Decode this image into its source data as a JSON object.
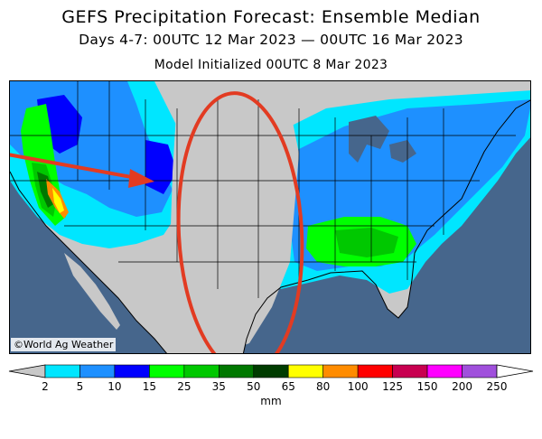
{
  "header": {
    "title": "GEFS Precipitation Forecast: Ensemble Median",
    "subtitle": "Days 4-7: 00UTC 12 Mar 2023 — 00UTC 16 Mar 2023",
    "initialized": "Model Initialized 00UTC 8 Mar 2023"
  },
  "credit": "©World Ag Weather",
  "legend": {
    "unit": "mm",
    "ticks": [
      "2",
      "5",
      "10",
      "15",
      "25",
      "35",
      "50",
      "65",
      "80",
      "100",
      "125",
      "150",
      "200",
      "250"
    ],
    "colors": [
      "#c8c8c8",
      "#00e6ff",
      "#1e90ff",
      "#0000ff",
      "#00ff00",
      "#00c800",
      "#007800",
      "#003c00",
      "#ffff00",
      "#ff8c00",
      "#ff0000",
      "#c80050",
      "#ff00ff",
      "#a050dc"
    ]
  },
  "colors": {
    "ocean": "#46668c",
    "land_dry": "#c8c8c8",
    "annotation": "#e23b22"
  }
}
